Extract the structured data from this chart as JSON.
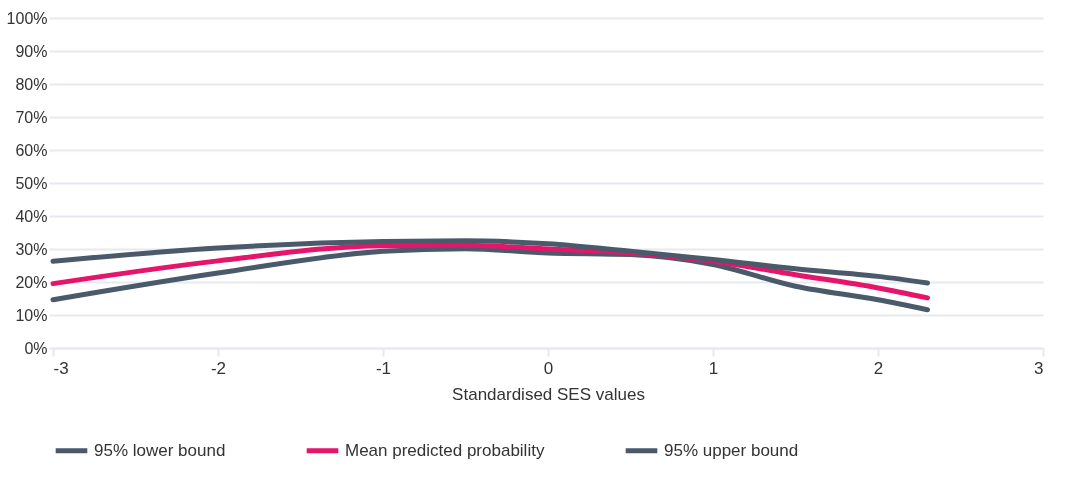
{
  "chart_data": {
    "type": "line",
    "xlabel": "Standardised SES values",
    "x": [
      -3,
      -2,
      -1,
      -0.5,
      0,
      0.5,
      1,
      1.5,
      2,
      2.3
    ],
    "series": [
      {
        "name": "95% lower bound",
        "color": "#4a5a6b",
        "values": [
          14.6,
          22.7,
          29.3,
          30.1,
          28.8,
          28.3,
          25.3,
          18.7,
          14.6,
          11.6
        ]
      },
      {
        "name": "Mean predicted probability",
        "color": "#e4156b",
        "values": [
          19.5,
          26.4,
          31,
          31.1,
          30,
          28.8,
          26.3,
          22.2,
          18.2,
          15.2
        ]
      },
      {
        "name": "95% upper bound",
        "color": "#4a5a6b",
        "values": [
          26.3,
          30.3,
          32.3,
          32.5,
          31.6,
          29.3,
          26.8,
          24,
          21.7,
          19.7
        ]
      }
    ],
    "xlim": [
      -3,
      3
    ],
    "xticks": [
      -3,
      -2,
      -1,
      0,
      1,
      2,
      3
    ],
    "ylim": [
      0,
      100
    ],
    "yticks": [
      {
        "value": 0,
        "label": "0%"
      },
      {
        "value": 10,
        "label": "10%"
      },
      {
        "value": 20,
        "label": "20%"
      },
      {
        "value": 30,
        "label": "30%"
      },
      {
        "value": 40,
        "label": "40%"
      },
      {
        "value": 50,
        "label": "50%"
      },
      {
        "value": 60,
        "label": "60%"
      },
      {
        "value": 70,
        "label": "70%"
      },
      {
        "value": 80,
        "label": "80%"
      },
      {
        "value": 90,
        "label": "90%"
      },
      {
        "value": 100,
        "label": "100%"
      }
    ],
    "grid": "y",
    "legend": "bottom",
    "marker": "none",
    "line_style": "solid"
  }
}
